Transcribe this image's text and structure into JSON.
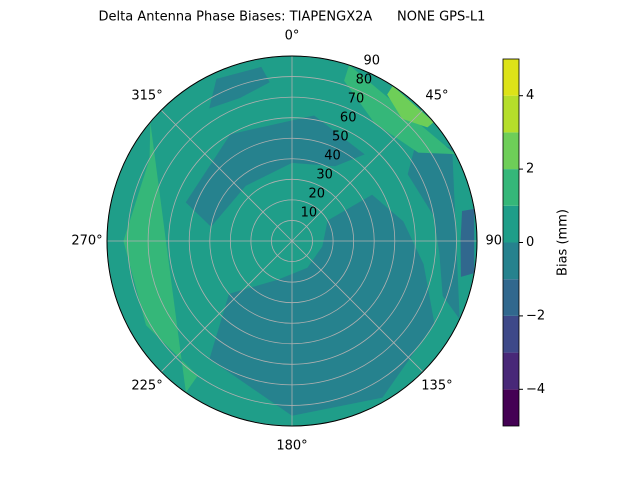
{
  "chart_data": {
    "type": "polar_contour",
    "title": "Delta Antenna Phase Biases: TIAPENGX2A      NONE GPS-L1",
    "rlim": [
      0,
      90
    ],
    "rticks": [
      10,
      20,
      30,
      40,
      50,
      60,
      70,
      80,
      90
    ],
    "theta_ticks": [
      {
        "value": 0,
        "label": "0°"
      },
      {
        "value": 45,
        "label": "45°"
      },
      {
        "value": 90,
        "label": "90°"
      },
      {
        "value": 135,
        "label": "135°"
      },
      {
        "value": 180,
        "label": "180°"
      },
      {
        "value": 225,
        "label": "225°"
      },
      {
        "value": 270,
        "label": "270°"
      },
      {
        "value": 315,
        "label": "315°"
      }
    ],
    "levels": [
      -5,
      -4,
      -3,
      -2,
      -1,
      0,
      1,
      2,
      3,
      4,
      5
    ],
    "colors": [
      "#440154",
      "#482878",
      "#3e4989",
      "#31688e",
      "#26828e",
      "#1f9e89",
      "#35b779",
      "#6ece58",
      "#b5de2b",
      "#dde318"
    ],
    "background_level": 0,
    "regions": [
      {
        "level": -1,
        "points": [
          [
            60,
            20
          ],
          [
            100,
            15
          ],
          [
            150,
            15
          ],
          [
            200,
            20
          ],
          [
            230,
            40
          ],
          [
            215,
            70
          ],
          [
            180,
            85
          ],
          [
            150,
            88
          ],
          [
            120,
            80
          ],
          [
            100,
            65
          ],
          [
            80,
            55
          ],
          [
            60,
            45
          ]
        ]
      },
      {
        "level": -1,
        "points": [
          [
            280,
            40
          ],
          [
            320,
            35
          ],
          [
            0,
            38
          ],
          [
            30,
            42
          ],
          [
            40,
            55
          ],
          [
            10,
            62
          ],
          [
            330,
            60
          ],
          [
            290,
            55
          ]
        ]
      },
      {
        "level": -1,
        "points": [
          [
            60,
            65
          ],
          [
            80,
            70
          ],
          [
            95,
            72
          ],
          [
            110,
            78
          ],
          [
            115,
            90
          ],
          [
            60,
            90
          ],
          [
            50,
            80
          ]
        ]
      },
      {
        "level": -1,
        "points": [
          [
            328,
            76
          ],
          [
            340,
            74
          ],
          [
            352,
            78
          ],
          [
            350,
            86
          ],
          [
            335,
            87
          ]
        ]
      },
      {
        "level": -2,
        "points": [
          [
            80,
            84
          ],
          [
            90,
            82
          ],
          [
            102,
            84
          ],
          [
            100,
            90
          ],
          [
            80,
            90
          ]
        ]
      },
      {
        "level": 1,
        "points": [
          [
            215,
            80
          ],
          [
            240,
            82
          ],
          [
            270,
            82
          ],
          [
            300,
            80
          ],
          [
            310,
            90
          ],
          [
            215,
            90
          ]
        ]
      },
      {
        "level": 1,
        "points": [
          [
            18,
            82
          ],
          [
            35,
            70
          ],
          [
            55,
            75
          ],
          [
            62,
            90
          ],
          [
            18,
            90
          ]
        ]
      },
      {
        "level": 2,
        "points": [
          [
            33,
            85
          ],
          [
            42,
            80
          ],
          [
            50,
            86
          ],
          [
            50,
            90
          ],
          [
            33,
            90
          ]
        ]
      }
    ],
    "colorbar": {
      "label": "Bias (mm)",
      "ticks": [
        {
          "value": -4,
          "label": "−4"
        },
        {
          "value": -2,
          "label": "−2"
        },
        {
          "value": 0,
          "label": "0"
        },
        {
          "value": 2,
          "label": "2"
        },
        {
          "value": 4,
          "label": "4"
        }
      ]
    }
  }
}
